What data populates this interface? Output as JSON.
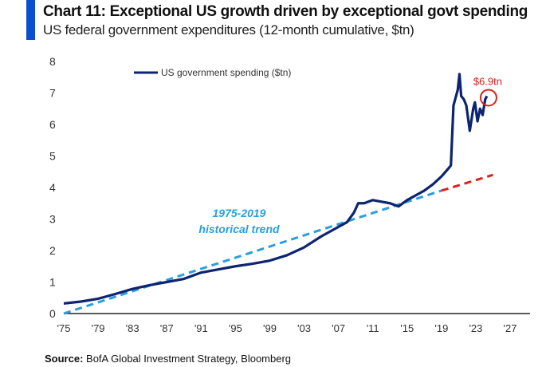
{
  "title": "Chart 11: Exceptional US growth driven by exceptional govt spending",
  "subtitle": "US federal government expenditures (12-month cumulative, $tn)",
  "source_label": "Source:",
  "source_text": " BofA Global Investment Strategy, Bloomberg",
  "colors": {
    "accent_bar": "#0a4fd0",
    "series": "#0d2470",
    "trend": "#2a9ee0",
    "trend_extension": "#e02020",
    "annotation": "#e02020"
  },
  "chart_data": {
    "type": "line",
    "title": "Chart 11: Exceptional US growth driven by exceptional govt spending",
    "subtitle": "US federal government expenditures (12-month cumulative, $tn)",
    "xlim": [
      1975,
      2028
    ],
    "ylim": [
      0,
      8
    ],
    "x_ticks": [
      "'75",
      "'79",
      "'83",
      "'87",
      "'91",
      "'95",
      "'99",
      "'03",
      "'07",
      "'11",
      "'15",
      "'19",
      "'23",
      "'27"
    ],
    "y_ticks": [
      "0",
      "1",
      "2",
      "3",
      "4",
      "5",
      "6",
      "7",
      "8"
    ],
    "grid": false,
    "legend": "top-left",
    "series": [
      {
        "name": "US government spending ($tn)",
        "x": [
          1975,
          1977,
          1979,
          1981,
          1983,
          1985,
          1987,
          1989,
          1991,
          1993,
          1995,
          1997,
          1999,
          2001,
          2003,
          2005,
          2007,
          2008,
          2008.8,
          2009.3,
          2010,
          2011,
          2012,
          2013,
          2014,
          2015,
          2016,
          2017,
          2018,
          2019,
          2019.8,
          2020.1,
          2020.4,
          2020.9,
          2021.1,
          2021.3,
          2021.6,
          2021.9,
          2022.3,
          2022.7,
          2022.9,
          2023.2,
          2023.5,
          2023.8,
          2024.1,
          2024.3
        ],
        "y": [
          0.32,
          0.38,
          0.47,
          0.62,
          0.78,
          0.9,
          1.0,
          1.1,
          1.3,
          1.4,
          1.5,
          1.58,
          1.68,
          1.85,
          2.1,
          2.45,
          2.75,
          2.9,
          3.2,
          3.5,
          3.5,
          3.6,
          3.55,
          3.5,
          3.4,
          3.6,
          3.75,
          3.9,
          4.1,
          4.35,
          4.6,
          4.7,
          6.6,
          7.1,
          7.6,
          6.9,
          6.8,
          6.6,
          5.8,
          6.5,
          6.7,
          6.1,
          6.5,
          6.3,
          6.8,
          6.9
        ]
      }
    ],
    "trend": {
      "label": "1975-2019 historical trend",
      "x": [
        1975,
        2019
      ],
      "y": [
        0.0,
        3.9
      ]
    },
    "trend_extension": {
      "x": [
        2019,
        2025
      ],
      "y": [
        3.9,
        4.4
      ]
    },
    "annotations": [
      {
        "text": "$6.9tn",
        "x": 2024.3,
        "y": 6.9
      }
    ]
  }
}
